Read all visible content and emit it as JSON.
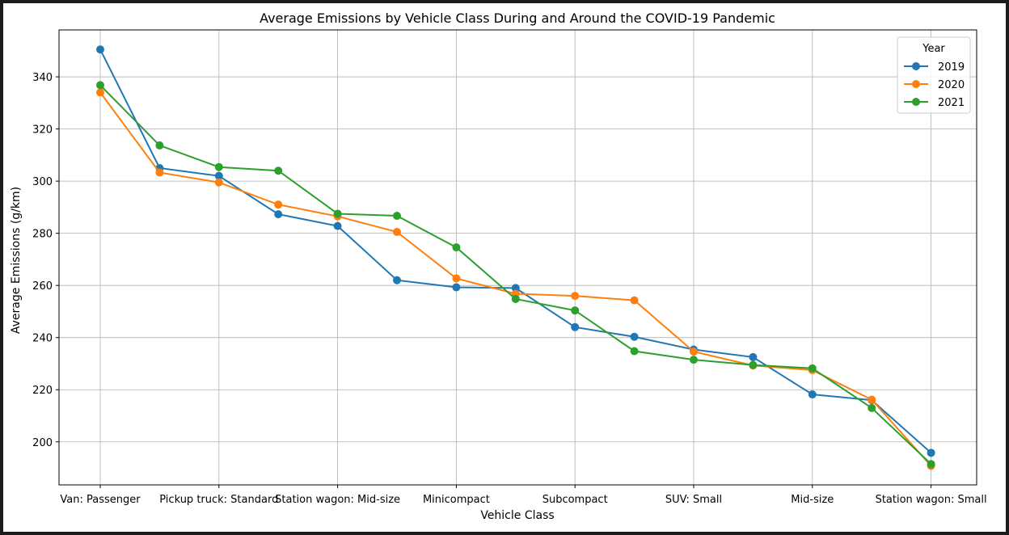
{
  "chart_data": {
    "type": "line",
    "title": "Average Emissions by Vehicle Class During and Around the COVID-19 Pandemic",
    "xlabel": "Vehicle Class",
    "ylabel": "Average Emissions (g/km)",
    "ylim": [
      183.5,
      358
    ],
    "yticks": [
      200,
      220,
      240,
      260,
      280,
      300,
      320,
      340
    ],
    "grid": true,
    "legend": {
      "title": "Year",
      "placement": "top-right"
    },
    "x_tick_labels": [
      "Van: Passenger",
      "Pickup truck: Standard",
      "Station wagon: Mid-size",
      "Minicompact",
      "Subcompact",
      "SUV: Small",
      "Mid-size",
      "Station wagon: Small"
    ],
    "x_tick_indices": [
      0,
      2,
      4,
      6,
      8,
      10,
      12,
      14
    ],
    "x_count": 15,
    "series": [
      {
        "name": "2019",
        "color": "#1f77b4",
        "values": [
          350.5,
          305.0,
          302.0,
          287.3,
          282.8,
          262.0,
          259.3,
          259.0,
          244.0,
          240.3,
          235.4,
          232.5,
          218.2,
          216.0,
          195.8
        ]
      },
      {
        "name": "2020",
        "color": "#ff7f0e",
        "values": [
          334.0,
          303.3,
          299.5,
          291.0,
          286.5,
          280.5,
          262.7,
          256.8,
          256.0,
          254.3,
          234.6,
          229.3,
          227.5,
          216.2,
          190.8
        ]
      },
      {
        "name": "2021",
        "color": "#2ca02c",
        "values": [
          336.8,
          313.7,
          305.4,
          304.0,
          287.5,
          286.7,
          274.6,
          254.8,
          250.4,
          234.8,
          231.5,
          229.5,
          228.2,
          213.0,
          191.5
        ]
      }
    ]
  }
}
